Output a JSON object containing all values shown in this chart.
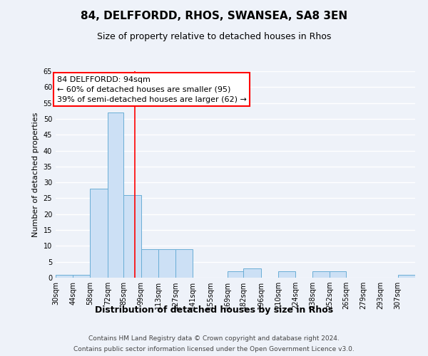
{
  "title": "84, DELFFORDD, RHOS, SWANSEA, SA8 3EN",
  "subtitle": "Size of property relative to detached houses in Rhos",
  "xlabel": "Distribution of detached houses by size in Rhos",
  "ylabel": "Number of detached properties",
  "bin_labels": [
    "30sqm",
    "44sqm",
    "58sqm",
    "72sqm",
    "85sqm",
    "99sqm",
    "113sqm",
    "127sqm",
    "141sqm",
    "155sqm",
    "169sqm",
    "182sqm",
    "196sqm",
    "210sqm",
    "224sqm",
    "238sqm",
    "252sqm",
    "265sqm",
    "279sqm",
    "293sqm",
    "307sqm"
  ],
  "bin_edges": [
    30,
    44,
    58,
    72,
    85,
    99,
    113,
    127,
    141,
    155,
    169,
    182,
    196,
    210,
    224,
    238,
    252,
    265,
    279,
    293,
    307
  ],
  "bar_heights": [
    1,
    1,
    28,
    52,
    26,
    9,
    9,
    9,
    0,
    0,
    2,
    3,
    0,
    2,
    0,
    2,
    2,
    0,
    0,
    0,
    1
  ],
  "bar_color": "#cce0f5",
  "bar_edge_color": "#6aaed6",
  "property_size": 94,
  "vline_color": "red",
  "annotation_title": "84 DELFFORDD: 94sqm",
  "annotation_line1": "← 60% of detached houses are smaller (95)",
  "annotation_line2": "39% of semi-detached houses are larger (62) →",
  "annotation_box_color": "white",
  "annotation_box_edge_color": "red",
  "ylim": [
    0,
    65
  ],
  "yticks": [
    0,
    5,
    10,
    15,
    20,
    25,
    30,
    35,
    40,
    45,
    50,
    55,
    60,
    65
  ],
  "background_color": "#eef2f9",
  "grid_color": "white",
  "title_fontsize": 11,
  "subtitle_fontsize": 9,
  "ylabel_fontsize": 8,
  "xlabel_fontsize": 9,
  "tick_fontsize": 7,
  "annotation_fontsize": 8,
  "footer_fontsize": 6.5,
  "footer_line1": "Contains HM Land Registry data © Crown copyright and database right 2024.",
  "footer_line2": "Contains public sector information licensed under the Open Government Licence v3.0."
}
